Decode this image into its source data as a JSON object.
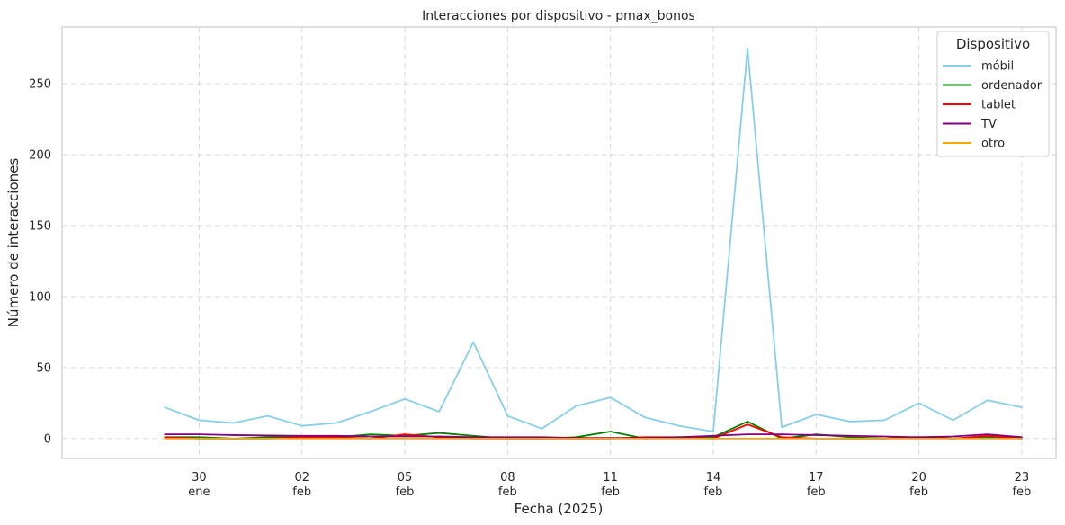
{
  "chart_data": {
    "type": "line",
    "title": "Interacciones por dispositivo - pmax_bonos",
    "xlabel": "Fecha (2025)",
    "ylabel": "Número de interacciones",
    "ylim": [
      -14,
      290
    ],
    "xlim": [
      "2025-01-26",
      "2025-02-24"
    ],
    "grid": true,
    "legend": {
      "title": "Dispositivo",
      "position": "top-right"
    },
    "y_ticks": [
      0,
      50,
      100,
      150,
      200,
      250
    ],
    "x_ticks": [
      {
        "date": "2025-01-30",
        "day": "30",
        "month": "ene"
      },
      {
        "date": "2025-02-02",
        "day": "02",
        "month": "feb"
      },
      {
        "date": "2025-02-05",
        "day": "05",
        "month": "feb"
      },
      {
        "date": "2025-02-08",
        "day": "08",
        "month": "feb"
      },
      {
        "date": "2025-02-11",
        "day": "11",
        "month": "feb"
      },
      {
        "date": "2025-02-14",
        "day": "14",
        "month": "feb"
      },
      {
        "date": "2025-02-17",
        "day": "17",
        "month": "feb"
      },
      {
        "date": "2025-02-20",
        "day": "20",
        "month": "feb"
      },
      {
        "date": "2025-02-23",
        "day": "23",
        "month": "feb"
      }
    ],
    "x": [
      "2025-01-29",
      "2025-01-30",
      "2025-01-31",
      "2025-02-01",
      "2025-02-02",
      "2025-02-03",
      "2025-02-04",
      "2025-02-05",
      "2025-02-06",
      "2025-02-07",
      "2025-02-08",
      "2025-02-09",
      "2025-02-10",
      "2025-02-11",
      "2025-02-12",
      "2025-02-13",
      "2025-02-14",
      "2025-02-15",
      "2025-02-16",
      "2025-02-17",
      "2025-02-18",
      "2025-02-19",
      "2025-02-20",
      "2025-02-21",
      "2025-02-22",
      "2025-02-23"
    ],
    "series": [
      {
        "name": "móbil",
        "color": "#87ceeb",
        "values": [
          22,
          13,
          11,
          16,
          9,
          11,
          19,
          28,
          19,
          68,
          16,
          7,
          23,
          29,
          15,
          9,
          5,
          275,
          8,
          17,
          12,
          13,
          25,
          13,
          27,
          22
        ]
      },
      {
        "name": "ordenador",
        "color": "#008000",
        "values": [
          1,
          1,
          0,
          1,
          1,
          1,
          3,
          2,
          4,
          2,
          0,
          0,
          1,
          5,
          0,
          1,
          1,
          12,
          0,
          3,
          1,
          0,
          1,
          0,
          1,
          0
        ]
      },
      {
        "name": "tablet",
        "color": "#ff0000",
        "values": [
          1,
          0,
          0,
          0,
          1,
          1,
          0,
          3,
          1,
          0,
          0,
          0,
          0,
          0,
          1,
          1,
          0,
          10,
          1,
          0,
          0,
          0,
          1,
          0,
          2,
          0
        ]
      },
      {
        "name": "TV",
        "color": "#800080",
        "values": [
          3,
          3,
          2.5,
          2.2,
          2,
          2,
          1.5,
          1.5,
          1.5,
          1,
          1,
          1,
          0.5,
          0.5,
          0.5,
          1,
          2,
          3,
          3,
          2.5,
          2,
          1.5,
          1,
          1.5,
          3,
          1
        ]
      },
      {
        "name": "otro",
        "color": "#ffa500",
        "values": [
          0,
          0,
          0,
          0,
          0,
          0,
          0,
          0,
          0,
          0,
          0,
          0,
          0,
          0,
          0,
          0,
          0,
          0,
          0,
          0,
          0,
          0,
          0,
          0,
          0,
          0
        ]
      }
    ]
  }
}
